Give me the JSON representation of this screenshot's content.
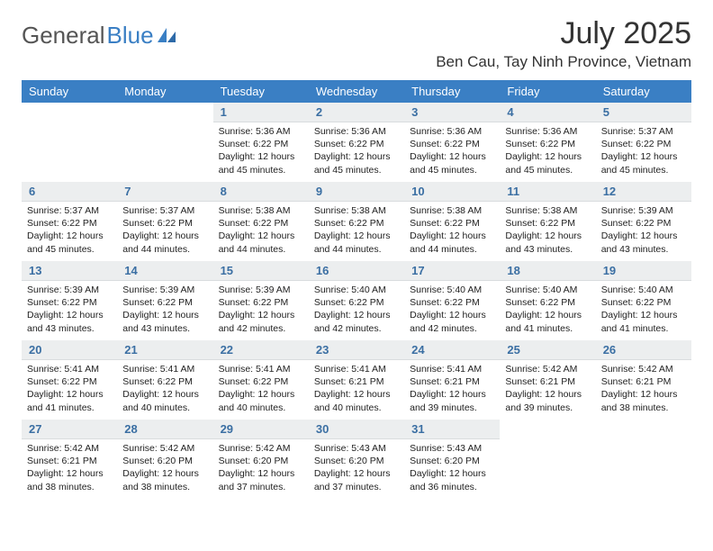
{
  "logo": {
    "text_gray": "General",
    "text_blue": "Blue"
  },
  "title": "July 2025",
  "location": "Ben Cau, Tay Ninh Province, Vietnam",
  "colors": {
    "header_bg": "#3a7fc4",
    "header_text": "#ffffff",
    "daynum_bg": "#eceeef",
    "daynum_text": "#3b6fa3",
    "body_text": "#222222",
    "page_bg": "#ffffff"
  },
  "day_headers": [
    "Sunday",
    "Monday",
    "Tuesday",
    "Wednesday",
    "Thursday",
    "Friday",
    "Saturday"
  ],
  "weeks": [
    [
      null,
      null,
      {
        "n": "1",
        "sr": "Sunrise: 5:36 AM",
        "ss": "Sunset: 6:22 PM",
        "dl": "Daylight: 12 hours and 45 minutes."
      },
      {
        "n": "2",
        "sr": "Sunrise: 5:36 AM",
        "ss": "Sunset: 6:22 PM",
        "dl": "Daylight: 12 hours and 45 minutes."
      },
      {
        "n": "3",
        "sr": "Sunrise: 5:36 AM",
        "ss": "Sunset: 6:22 PM",
        "dl": "Daylight: 12 hours and 45 minutes."
      },
      {
        "n": "4",
        "sr": "Sunrise: 5:36 AM",
        "ss": "Sunset: 6:22 PM",
        "dl": "Daylight: 12 hours and 45 minutes."
      },
      {
        "n": "5",
        "sr": "Sunrise: 5:37 AM",
        "ss": "Sunset: 6:22 PM",
        "dl": "Daylight: 12 hours and 45 minutes."
      }
    ],
    [
      {
        "n": "6",
        "sr": "Sunrise: 5:37 AM",
        "ss": "Sunset: 6:22 PM",
        "dl": "Daylight: 12 hours and 45 minutes."
      },
      {
        "n": "7",
        "sr": "Sunrise: 5:37 AM",
        "ss": "Sunset: 6:22 PM",
        "dl": "Daylight: 12 hours and 44 minutes."
      },
      {
        "n": "8",
        "sr": "Sunrise: 5:38 AM",
        "ss": "Sunset: 6:22 PM",
        "dl": "Daylight: 12 hours and 44 minutes."
      },
      {
        "n": "9",
        "sr": "Sunrise: 5:38 AM",
        "ss": "Sunset: 6:22 PM",
        "dl": "Daylight: 12 hours and 44 minutes."
      },
      {
        "n": "10",
        "sr": "Sunrise: 5:38 AM",
        "ss": "Sunset: 6:22 PM",
        "dl": "Daylight: 12 hours and 44 minutes."
      },
      {
        "n": "11",
        "sr": "Sunrise: 5:38 AM",
        "ss": "Sunset: 6:22 PM",
        "dl": "Daylight: 12 hours and 43 minutes."
      },
      {
        "n": "12",
        "sr": "Sunrise: 5:39 AM",
        "ss": "Sunset: 6:22 PM",
        "dl": "Daylight: 12 hours and 43 minutes."
      }
    ],
    [
      {
        "n": "13",
        "sr": "Sunrise: 5:39 AM",
        "ss": "Sunset: 6:22 PM",
        "dl": "Daylight: 12 hours and 43 minutes."
      },
      {
        "n": "14",
        "sr": "Sunrise: 5:39 AM",
        "ss": "Sunset: 6:22 PM",
        "dl": "Daylight: 12 hours and 43 minutes."
      },
      {
        "n": "15",
        "sr": "Sunrise: 5:39 AM",
        "ss": "Sunset: 6:22 PM",
        "dl": "Daylight: 12 hours and 42 minutes."
      },
      {
        "n": "16",
        "sr": "Sunrise: 5:40 AM",
        "ss": "Sunset: 6:22 PM",
        "dl": "Daylight: 12 hours and 42 minutes."
      },
      {
        "n": "17",
        "sr": "Sunrise: 5:40 AM",
        "ss": "Sunset: 6:22 PM",
        "dl": "Daylight: 12 hours and 42 minutes."
      },
      {
        "n": "18",
        "sr": "Sunrise: 5:40 AM",
        "ss": "Sunset: 6:22 PM",
        "dl": "Daylight: 12 hours and 41 minutes."
      },
      {
        "n": "19",
        "sr": "Sunrise: 5:40 AM",
        "ss": "Sunset: 6:22 PM",
        "dl": "Daylight: 12 hours and 41 minutes."
      }
    ],
    [
      {
        "n": "20",
        "sr": "Sunrise: 5:41 AM",
        "ss": "Sunset: 6:22 PM",
        "dl": "Daylight: 12 hours and 41 minutes."
      },
      {
        "n": "21",
        "sr": "Sunrise: 5:41 AM",
        "ss": "Sunset: 6:22 PM",
        "dl": "Daylight: 12 hours and 40 minutes."
      },
      {
        "n": "22",
        "sr": "Sunrise: 5:41 AM",
        "ss": "Sunset: 6:22 PM",
        "dl": "Daylight: 12 hours and 40 minutes."
      },
      {
        "n": "23",
        "sr": "Sunrise: 5:41 AM",
        "ss": "Sunset: 6:21 PM",
        "dl": "Daylight: 12 hours and 40 minutes."
      },
      {
        "n": "24",
        "sr": "Sunrise: 5:41 AM",
        "ss": "Sunset: 6:21 PM",
        "dl": "Daylight: 12 hours and 39 minutes."
      },
      {
        "n": "25",
        "sr": "Sunrise: 5:42 AM",
        "ss": "Sunset: 6:21 PM",
        "dl": "Daylight: 12 hours and 39 minutes."
      },
      {
        "n": "26",
        "sr": "Sunrise: 5:42 AM",
        "ss": "Sunset: 6:21 PM",
        "dl": "Daylight: 12 hours and 38 minutes."
      }
    ],
    [
      {
        "n": "27",
        "sr": "Sunrise: 5:42 AM",
        "ss": "Sunset: 6:21 PM",
        "dl": "Daylight: 12 hours and 38 minutes."
      },
      {
        "n": "28",
        "sr": "Sunrise: 5:42 AM",
        "ss": "Sunset: 6:20 PM",
        "dl": "Daylight: 12 hours and 38 minutes."
      },
      {
        "n": "29",
        "sr": "Sunrise: 5:42 AM",
        "ss": "Sunset: 6:20 PM",
        "dl": "Daylight: 12 hours and 37 minutes."
      },
      {
        "n": "30",
        "sr": "Sunrise: 5:43 AM",
        "ss": "Sunset: 6:20 PM",
        "dl": "Daylight: 12 hours and 37 minutes."
      },
      {
        "n": "31",
        "sr": "Sunrise: 5:43 AM",
        "ss": "Sunset: 6:20 PM",
        "dl": "Daylight: 12 hours and 36 minutes."
      },
      null,
      null
    ]
  ]
}
